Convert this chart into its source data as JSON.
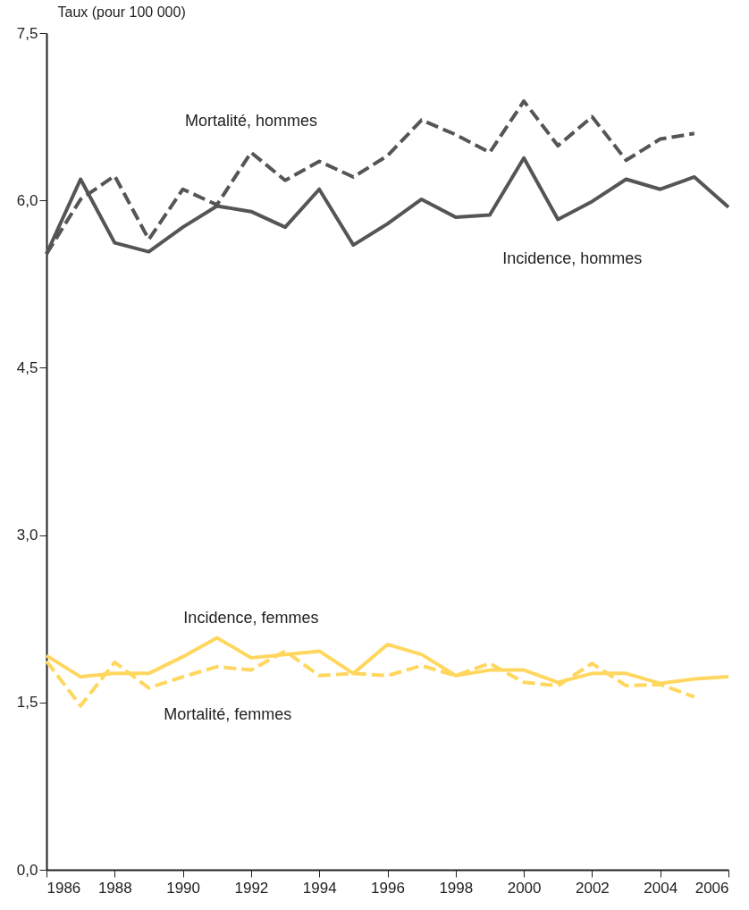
{
  "chart_data": {
    "type": "line",
    "ylabel": "Taux (pour 100 000)",
    "x": [
      1986,
      1987,
      1988,
      1989,
      1990,
      1991,
      1992,
      1993,
      1994,
      1995,
      1996,
      1997,
      1998,
      1999,
      2000,
      2001,
      2002,
      2003,
      2004,
      2005,
      2006
    ],
    "series": [
      {
        "name": "Mortalité, hommes",
        "color": "#555555",
        "line_style": "dashed",
        "values": [
          5.52,
          6.01,
          6.22,
          5.65,
          6.1,
          5.96,
          6.43,
          6.18,
          6.35,
          6.21,
          6.4,
          6.72,
          6.59,
          6.43,
          6.89,
          6.49,
          6.75,
          6.36,
          6.55,
          6.6,
          null
        ]
      },
      {
        "name": "Incidence, hommes",
        "color": "#555555",
        "line_style": "solid",
        "values": [
          5.52,
          6.19,
          5.62,
          5.54,
          5.76,
          5.95,
          5.9,
          5.76,
          6.1,
          5.6,
          5.79,
          6.01,
          5.85,
          5.87,
          6.38,
          5.83,
          5.99,
          6.19,
          6.1,
          6.21,
          5.94
        ]
      },
      {
        "name": "Incidence, femmes",
        "color": "#ffd75e",
        "line_style": "solid",
        "values": [
          1.92,
          1.73,
          1.76,
          1.76,
          1.91,
          2.08,
          1.9,
          1.93,
          1.96,
          1.76,
          2.02,
          1.93,
          1.74,
          1.79,
          1.79,
          1.68,
          1.76,
          1.76,
          1.67,
          1.71,
          1.73
        ]
      },
      {
        "name": "Mortalité, femmes",
        "color": "#ffd75e",
        "line_style": "dashed",
        "values": [
          1.87,
          1.47,
          1.86,
          1.63,
          1.73,
          1.82,
          1.79,
          1.96,
          1.74,
          1.76,
          1.74,
          1.83,
          1.74,
          1.85,
          1.68,
          1.65,
          1.85,
          1.65,
          1.66,
          1.55,
          null
        ]
      }
    ],
    "xlim": [
      1986,
      2006
    ],
    "xticks": [
      1986,
      1988,
      1990,
      1992,
      1994,
      1996,
      1998,
      2000,
      2002,
      2004,
      2006
    ],
    "ylim": [
      0,
      7.5
    ],
    "yticks": [
      {
        "value": 0,
        "label": "0,0"
      },
      {
        "value": 1.5,
        "label": "1,5"
      },
      {
        "value": 3,
        "label": "3,0"
      },
      {
        "value": 4.5,
        "label": "4,5"
      },
      {
        "value": 6,
        "label": "6,0"
      },
      {
        "value": 7.5,
        "label": "7,5"
      }
    ],
    "grid": false,
    "legend": false
  }
}
